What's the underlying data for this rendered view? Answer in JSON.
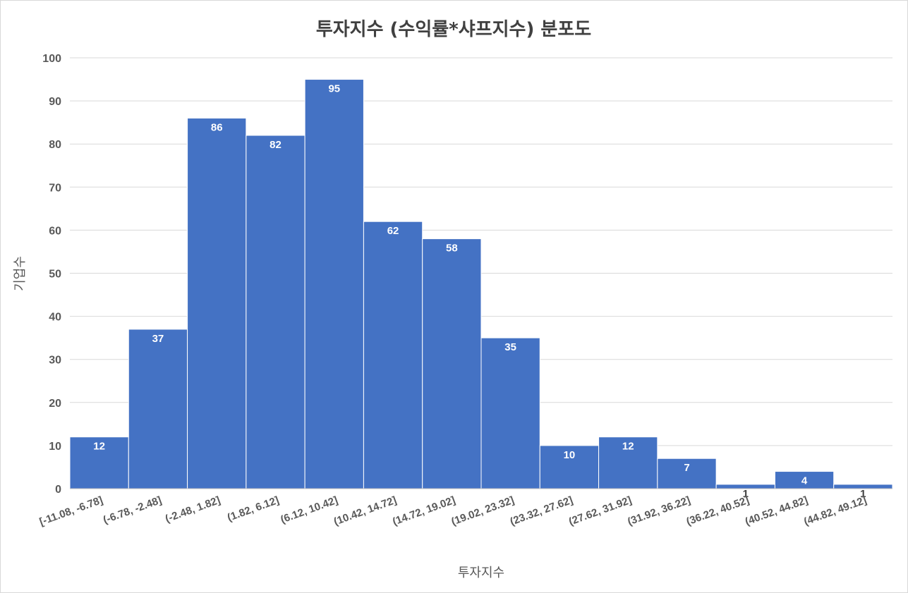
{
  "chart_data": {
    "type": "bar",
    "title": "투자지수 (수익률*샤프지수) 분포도",
    "xlabel": "투자지수",
    "ylabel": "기업수",
    "ylim": [
      0,
      100
    ],
    "yticks": [
      0,
      10,
      20,
      30,
      40,
      50,
      60,
      70,
      80,
      90,
      100
    ],
    "grid": true,
    "legend": "none",
    "categories": [
      "[-11.08, -6.78]",
      "(-6.78, -2.48]",
      "(-2.48, 1.82]",
      "(1.82, 6.12]",
      "(6.12, 10.42]",
      "(10.42, 14.72]",
      "(14.72, 19.02]",
      "(19.02, 23.32]",
      "(23.32, 27.62]",
      "(27.62, 31.92]",
      "(31.92, 36.22]",
      "(36.22, 40.52]",
      "(40.52, 44.82]",
      "(44.82, 49.12]"
    ],
    "values": [
      12,
      37,
      86,
      82,
      95,
      62,
      58,
      35,
      10,
      12,
      7,
      1,
      4,
      1
    ],
    "bar_color": "#4472c4",
    "grid_color": "#d9d9d9"
  }
}
